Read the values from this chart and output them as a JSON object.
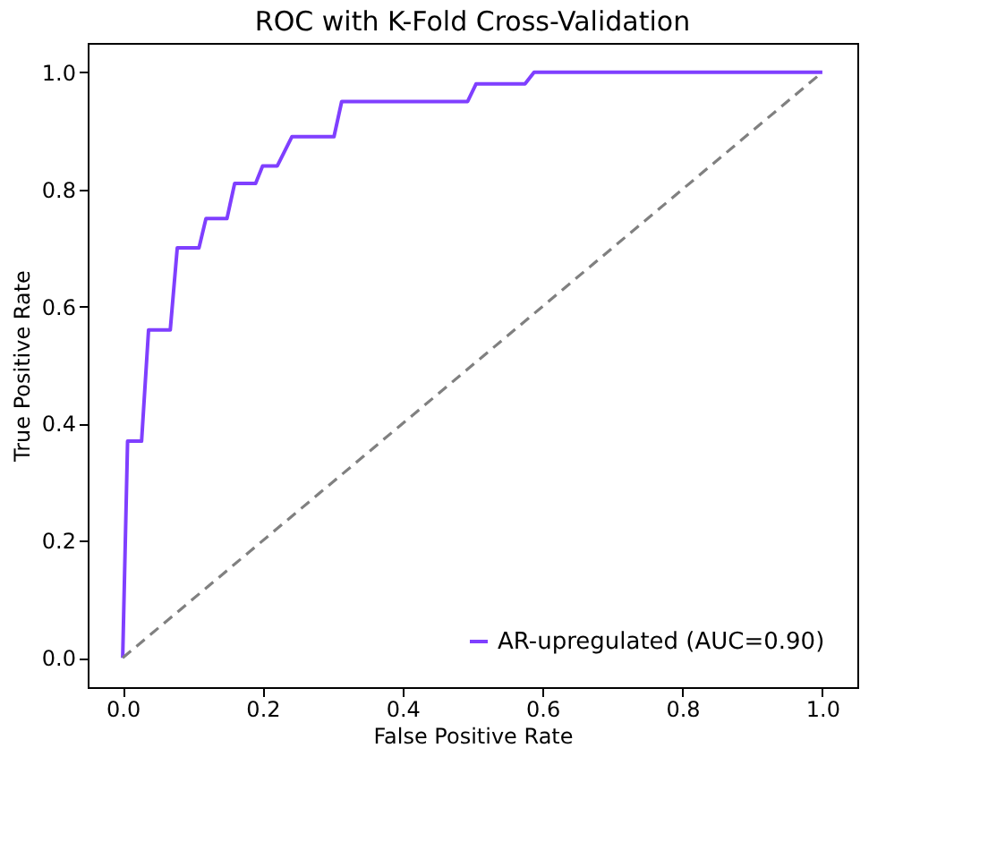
{
  "chart_data": {
    "type": "line",
    "title": "ROC with K-Fold Cross-Validation",
    "xlabel": "False Positive Rate",
    "ylabel": "True Positive Rate",
    "series": [
      {
        "name": "AR-upregulated (AUC=0.90)",
        "color": "#7f3fff",
        "x": [
          0,
          0.007,
          0.027,
          0.037,
          0.068,
          0.078,
          0.109,
          0.119,
          0.149,
          0.16,
          0.19,
          0.2,
          0.221,
          0.242,
          0.302,
          0.313,
          0.493,
          0.505,
          0.575,
          0.588,
          1.0
        ],
        "values": [
          0,
          0.37,
          0.37,
          0.56,
          0.56,
          0.7,
          0.7,
          0.75,
          0.75,
          0.81,
          0.81,
          0.84,
          0.84,
          0.89,
          0.89,
          0.95,
          0.95,
          0.98,
          0.98,
          1.0,
          1.0
        ]
      },
      {
        "color": "#808080",
        "line_style": "dashed",
        "x": [
          0,
          1
        ],
        "values": [
          0,
          1
        ]
      }
    ],
    "xlim": [
      -0.05,
      1.05
    ],
    "ylim": [
      -0.05,
      1.05
    ],
    "xticks": [
      {
        "value": 0,
        "label": "0.0"
      },
      0.2,
      0.4,
      0.6,
      0.8,
      {
        "value": 1,
        "label": "1.0"
      }
    ],
    "yticks": [
      {
        "value": 0,
        "label": "0.0"
      },
      0.2,
      0.4,
      0.6,
      0.8,
      {
        "value": 1,
        "label": "1.0"
      }
    ],
    "legend": "bottom right",
    "grid": false
  }
}
